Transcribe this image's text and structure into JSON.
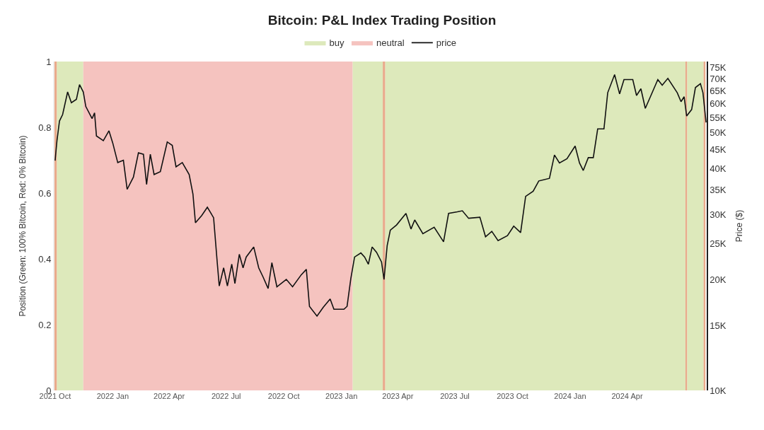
{
  "chart_data": {
    "type": "line",
    "title": "Bitcoin: P&L Index Trading Position",
    "ylabel": "Position (Green: 100% Bitcoin, Red: 0% Bitcoin)",
    "y2label": "Price ($)",
    "xlim": [
      "2021-09-30",
      "2024-08-06"
    ],
    "xticks": [
      {
        "value": "2021-10-01",
        "label": "2021 Oct"
      },
      {
        "value": "2022-01-01",
        "label": "2022 Jan"
      },
      {
        "value": "2022-04-01",
        "label": "2022 Apr"
      },
      {
        "value": "2022-07-01",
        "label": "2022 Jul"
      },
      {
        "value": "2022-10-01",
        "label": "2022 Oct"
      },
      {
        "value": "2023-01-01",
        "label": "2023 Jan"
      },
      {
        "value": "2023-04-01",
        "label": "2023 Apr"
      },
      {
        "value": "2023-07-01",
        "label": "2023 Jul"
      },
      {
        "value": "2023-10-01",
        "label": "2023 Oct"
      },
      {
        "value": "2024-01-01",
        "label": "2024 Jan"
      },
      {
        "value": "2024-04-01",
        "label": "2024 Apr"
      }
    ],
    "ylim": [
      0,
      1
    ],
    "yticks": [
      0,
      0.2,
      0.4,
      0.6,
      0.8,
      1
    ],
    "y2lim": [
      10000,
      78000
    ],
    "y2ticks": [
      {
        "value": 10000,
        "label": "10K"
      },
      {
        "value": 15000,
        "label": "15K"
      },
      {
        "value": 20000,
        "label": "20K"
      },
      {
        "value": 25000,
        "label": "25K"
      },
      {
        "value": 30000,
        "label": "30K"
      },
      {
        "value": 35000,
        "label": "35K"
      },
      {
        "value": 40000,
        "label": "40K"
      },
      {
        "value": 45000,
        "label": "45K"
      },
      {
        "value": 50000,
        "label": "50K"
      },
      {
        "value": 55000,
        "label": "55K"
      },
      {
        "value": 60000,
        "label": "60K"
      },
      {
        "value": 65000,
        "label": "65K"
      },
      {
        "value": 70000,
        "label": "70K"
      },
      {
        "value": 75000,
        "label": "75K"
      }
    ],
    "log": "y2",
    "grid": false,
    "legend": "top",
    "marker": "none",
    "line_style": "solid",
    "bands": [
      {
        "axis": "x",
        "from": "2021-09-30",
        "to": "2021-10-04",
        "color": "#e9ab8c"
      },
      {
        "axis": "x",
        "from": "2021-10-04",
        "to": "2021-11-15",
        "label": "buy",
        "color": "#dde9bb"
      },
      {
        "axis": "x",
        "from": "2021-11-15",
        "to": "2023-01-19",
        "label": "neutral",
        "color": "#f5c3bf"
      },
      {
        "axis": "x",
        "from": "2023-01-19",
        "to": "2023-03-08",
        "color": "#dde9bb"
      },
      {
        "axis": "x",
        "from": "2023-03-08",
        "to": "2023-03-12",
        "color": "#e9ab8c"
      },
      {
        "axis": "x",
        "from": "2023-03-12",
        "to": "2024-07-03",
        "color": "#dde9bb"
      },
      {
        "axis": "x",
        "from": "2024-07-03",
        "to": "2024-07-06",
        "color": "#e9ab8c"
      },
      {
        "axis": "x",
        "from": "2024-07-06",
        "to": "2024-08-01",
        "color": "#dde9bb"
      },
      {
        "axis": "x",
        "from": "2024-08-01",
        "to": "2024-08-04",
        "color": "#e9ab8c"
      }
    ],
    "series": [
      {
        "name": "price",
        "color": "#111111",
        "axis": "y2",
        "x": [
          "2021-10-01",
          "2021-10-04",
          "2021-10-08",
          "2021-10-13",
          "2021-10-21",
          "2021-10-27",
          "2021-11-04",
          "2021-11-09",
          "2021-11-15",
          "2021-11-19",
          "2021-11-29",
          "2021-12-03",
          "2021-12-06",
          "2021-12-17",
          "2021-12-26",
          "2022-01-01",
          "2022-01-09",
          "2022-01-18",
          "2022-01-24",
          "2022-02-03",
          "2022-02-11",
          "2022-02-19",
          "2022-02-24",
          "2022-03-02",
          "2022-03-08",
          "2022-03-18",
          "2022-03-29",
          "2022-04-06",
          "2022-04-12",
          "2022-04-22",
          "2022-05-03",
          "2022-05-09",
          "2022-05-13",
          "2022-05-23",
          "2022-06-01",
          "2022-06-07",
          "2022-06-11",
          "2022-06-17",
          "2022-06-20",
          "2022-06-27",
          "2022-07-03",
          "2022-07-10",
          "2022-07-15",
          "2022-07-22",
          "2022-07-28",
          "2022-08-02",
          "2022-08-14",
          "2022-08-22",
          "2022-08-29",
          "2022-09-06",
          "2022-09-12",
          "2022-09-20",
          "2022-10-05",
          "2022-10-15",
          "2022-10-29",
          "2022-11-06",
          "2022-11-11",
          "2022-11-23",
          "2022-12-03",
          "2022-12-14",
          "2022-12-20",
          "2023-01-05",
          "2023-01-10",
          "2023-01-16",
          "2023-01-22",
          "2023-02-01",
          "2023-02-07",
          "2023-02-13",
          "2023-02-19",
          "2023-02-26",
          "2023-03-06",
          "2023-03-10",
          "2023-03-15",
          "2023-03-20",
          "2023-03-30",
          "2023-04-14",
          "2023-04-22",
          "2023-04-28",
          "2023-05-11",
          "2023-05-29",
          "2023-06-13",
          "2023-06-21",
          "2023-07-05",
          "2023-07-13",
          "2023-07-23",
          "2023-08-10",
          "2023-08-19",
          "2023-08-29",
          "2023-09-08",
          "2023-09-23",
          "2023-10-03",
          "2023-10-14",
          "2023-10-22",
          "2023-11-03",
          "2023-11-12",
          "2023-11-29",
          "2023-12-07",
          "2023-12-15",
          "2023-12-27",
          "2024-01-09",
          "2024-01-16",
          "2024-01-22",
          "2024-01-30",
          "2024-02-07",
          "2024-02-14",
          "2024-02-24",
          "2024-03-01",
          "2024-03-12",
          "2024-03-20",
          "2024-03-27",
          "2024-04-10",
          "2024-04-16",
          "2024-04-23",
          "2024-04-30",
          "2024-05-09",
          "2024-05-20",
          "2024-05-27",
          "2024-06-05",
          "2024-06-20",
          "2024-06-26",
          "2024-07-01",
          "2024-07-05",
          "2024-07-13",
          "2024-07-19",
          "2024-07-27",
          "2024-07-31",
          "2024-08-05"
        ],
        "values": [
          42000,
          47600,
          53800,
          56000,
          64500,
          60300,
          61600,
          67500,
          64500,
          58900,
          54600,
          56600,
          49000,
          47600,
          50600,
          46900,
          41500,
          42100,
          35100,
          37900,
          44100,
          43700,
          36200,
          43700,
          38500,
          39200,
          47200,
          46200,
          40400,
          41500,
          38500,
          34100,
          28500,
          29800,
          31400,
          30200,
          29400,
          22000,
          19200,
          21500,
          19200,
          22000,
          19500,
          23400,
          21500,
          23000,
          24500,
          21500,
          20300,
          18900,
          22200,
          19100,
          20000,
          19100,
          20600,
          21300,
          16900,
          15900,
          16800,
          17700,
          16600,
          16600,
          16900,
          20100,
          23000,
          23600,
          23000,
          22000,
          24500,
          23700,
          22300,
          20000,
          24700,
          27200,
          28100,
          30200,
          27400,
          29000,
          26600,
          27700,
          25300,
          30200,
          30500,
          30700,
          29300,
          29500,
          26100,
          27000,
          25500,
          26300,
          27900,
          26800,
          33600,
          34700,
          37000,
          37600,
          43500,
          41400,
          42500,
          46000,
          41400,
          39500,
          42800,
          42800,
          51200,
          51200,
          64200,
          71900,
          63700,
          69700,
          69700,
          63100,
          65800,
          58200,
          63100,
          69700,
          67300,
          70200,
          64200,
          60700,
          62600,
          55500,
          57800,
          66300,
          67900,
          64200,
          53300
        ]
      }
    ]
  }
}
